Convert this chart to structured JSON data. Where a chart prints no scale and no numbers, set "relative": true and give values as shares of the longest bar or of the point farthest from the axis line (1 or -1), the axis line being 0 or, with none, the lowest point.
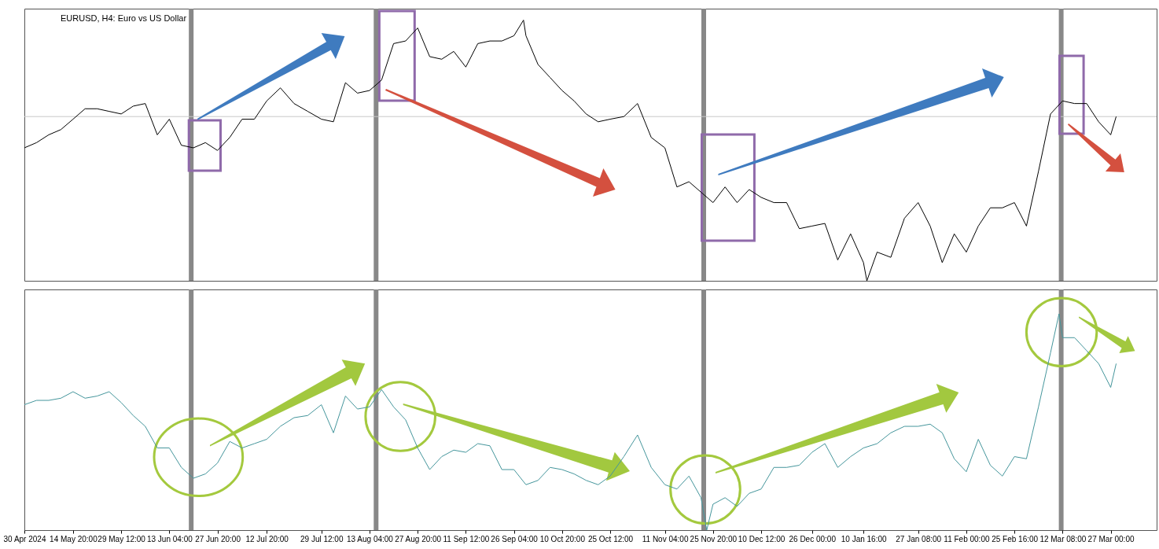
{
  "chart_data": [
    {
      "type": "line",
      "title": "EURUSD, H4: Euro vs US Dollar",
      "relative": true,
      "tick_labels": false,
      "xlim": [
        "2024-04-30T00:00",
        "2025-04-10T00:00"
      ],
      "x": [
        "2024-04-30T00:00",
        "2024-05-03T17:00",
        "2024-05-07T10:00",
        "2024-05-11T03:00",
        "2024-05-14T20:00",
        "2024-05-18T12:00",
        "2024-05-22T04:00",
        "2024-05-25T20:00",
        "2024-05-29T12:00",
        "2024-06-02T04:00",
        "2024-06-05T20:00",
        "2024-06-09T12:00",
        "2024-06-13T04:00",
        "2024-06-16T20:00",
        "2024-06-20T12:00",
        "2024-06-24T04:00",
        "2024-06-27T20:00",
        "2024-07-01T14:00",
        "2024-07-05T08:00",
        "2024-07-09T02:00",
        "2024-07-12T20:00",
        "2024-07-17T00:00",
        "2024-07-21T04:00",
        "2024-07-25T08:00",
        "2024-07-29T12:00",
        "2024-08-02T04:00",
        "2024-08-05T20:00",
        "2024-08-09T12:00",
        "2024-08-13T04:00",
        "2024-08-16T20:00",
        "2024-08-20T12:00",
        "2024-08-24T04:00",
        "2024-08-27T20:00",
        "2024-08-31T12:00",
        "2024-09-04T04:00",
        "2024-09-07T20:00",
        "2024-09-11T12:00",
        "2024-09-15T04:00",
        "2024-09-18T20:00",
        "2024-09-22T12:00",
        "2024-09-26T04:00",
        "2024-09-29T02:00",
        "2024-09-29T20:00",
        "2024-10-03T12:00",
        "2024-10-07T04:00",
        "2024-10-10T20:00",
        "2024-10-14T12:00",
        "2024-10-18T04:00",
        "2024-10-21T20:00",
        "2024-10-25T12:00",
        "2024-10-29T16:00",
        "2024-11-02T20:00",
        "2024-11-07T00:00",
        "2024-11-11T04:00",
        "2024-11-14T20:00",
        "2024-11-18T12:00",
        "2024-11-22T04:00",
        "2024-11-25T20:00",
        "2024-11-29T12:00",
        "2024-12-03T04:00",
        "2024-12-06T20:00",
        "2024-12-10T12:00",
        "2024-12-14T09:00",
        "2024-12-18T06:00",
        "2024-12-22T03:00",
        "2024-12-26T00:00",
        "2024-12-29T22:00",
        "2025-01-02T20:00",
        "2025-01-06T18:00",
        "2025-01-10T16:00",
        "2025-01-11T17:00",
        "2025-01-14T20:00",
        "2025-01-19T00:00",
        "2025-01-23T04:00",
        "2025-01-27T08:00",
        "2025-01-31T00:00",
        "2025-02-03T16:00",
        "2025-02-07T08:00",
        "2025-02-11T00:00",
        "2025-02-14T16:00",
        "2025-02-18T08:00",
        "2025-02-22T00:00",
        "2025-02-25T16:00",
        "2025-03-01T08:00",
        "2025-03-05T00:00",
        "2025-03-08T16:00",
        "2025-03-12T08:00",
        "2025-03-16T00:00",
        "2025-03-19T16:00",
        "2025-03-23T08:00",
        "2025-03-27T00:00",
        "2025-03-28T16:00"
      ],
      "series": [
        {
          "color": "#000000",
          "values": [
            0.51,
            0.53,
            0.56,
            0.58,
            0.62,
            0.66,
            0.66,
            0.65,
            0.64,
            0.67,
            0.68,
            0.56,
            0.62,
            0.52,
            0.51,
            0.53,
            0.5,
            0.55,
            0.62,
            0.62,
            0.69,
            0.74,
            0.68,
            0.65,
            0.62,
            0.61,
            0.76,
            0.72,
            0.73,
            0.77,
            0.91,
            0.92,
            0.97,
            0.86,
            0.85,
            0.88,
            0.82,
            0.91,
            0.92,
            0.92,
            0.94,
            1.0,
            0.94,
            0.83,
            0.78,
            0.73,
            0.69,
            0.64,
            0.61,
            0.62,
            0.63,
            0.68,
            0.55,
            0.51,
            0.36,
            0.38,
            0.34,
            0.3,
            0.36,
            0.3,
            0.35,
            0.32,
            0.3,
            0.3,
            0.2,
            0.21,
            0.22,
            0.08,
            0.18,
            0.07,
            0,
            0.11,
            0.09,
            0.24,
            0.3,
            0.21,
            0.07,
            0.18,
            0.11,
            0.21,
            0.28,
            0.28,
            0.3,
            0.21,
            0.42,
            0.64,
            0.69,
            0.68,
            0.68,
            0.61,
            0.56,
            0.63
          ]
        }
      ],
      "ref_lines": [
        {
          "axis": "x",
          "value": "2024-06-19T20:00",
          "color": "#888888"
        },
        {
          "axis": "x",
          "value": "2024-08-15T04:00",
          "color": "#888888"
        },
        {
          "axis": "x",
          "value": "2024-11-23T00:00",
          "color": "#888888"
        },
        {
          "axis": "x",
          "value": "2025-03-11T22:00",
          "color": "#888888"
        },
        {
          "axis": "y",
          "value": 0.63,
          "color": "#c8c8c8"
        }
      ]
    },
    {
      "type": "line",
      "relative": true,
      "tick_labels": "x",
      "xlim": [
        "2024-04-30T00:00",
        "2025-04-10T00:00"
      ],
      "xticks": [
        {
          "value": "2024-04-30T00:00",
          "label": "30 Apr 2024"
        },
        {
          "value": "2024-05-14T20:00",
          "label": "14 May 20:00"
        },
        {
          "value": "2024-05-29T12:00",
          "label": "29 May 12:00"
        },
        {
          "value": "2024-06-13T04:00",
          "label": "13 Jun 04:00"
        },
        {
          "value": "2024-06-27T20:00",
          "label": "27 Jun 20:00"
        },
        {
          "value": "2024-07-12T20:00",
          "label": "12 Jul 20:00"
        },
        {
          "value": "2024-07-29T12:00",
          "label": "29 Jul 12:00"
        },
        {
          "value": "2024-08-13T04:00",
          "label": "13 Aug 04:00"
        },
        {
          "value": "2024-08-27T20:00",
          "label": "27 Aug 20:00"
        },
        {
          "value": "2024-09-11T12:00",
          "label": "11 Sep 12:00"
        },
        {
          "value": "2024-09-26T04:00",
          "label": "26 Sep 04:00"
        },
        {
          "value": "2024-10-10T20:00",
          "label": "10 Oct 20:00"
        },
        {
          "value": "2024-10-25T12:00",
          "label": "25 Oct 12:00"
        },
        {
          "value": "2024-11-11T04:00",
          "label": "11 Nov 04:00"
        },
        {
          "value": "2024-11-25T20:00",
          "label": "25 Nov 20:00"
        },
        {
          "value": "2024-12-10T12:00",
          "label": "10 Dec 12:00"
        },
        {
          "value": "2024-12-26T00:00",
          "label": "26 Dec 00:00"
        },
        {
          "value": "2025-01-10T16:00",
          "label": "10 Jan 16:00"
        },
        {
          "value": "2025-01-27T08:00",
          "label": "27 Jan 08:00"
        },
        {
          "value": "2025-02-11T00:00",
          "label": "11 Feb 00:00"
        },
        {
          "value": "2025-02-25T16:00",
          "label": "25 Feb 16:00"
        },
        {
          "value": "2025-03-12T08:00",
          "label": "12 Mar 08:00"
        },
        {
          "value": "2025-03-27T00:00",
          "label": "27 Mar 00:00"
        }
      ],
      "x": [
        "2024-04-30T00:00",
        "2024-05-03T17:00",
        "2024-05-07T10:00",
        "2024-05-11T03:00",
        "2024-05-14T20:00",
        "2024-05-18T12:00",
        "2024-05-22T04:00",
        "2024-05-25T20:00",
        "2024-05-29T12:00",
        "2024-06-02T04:00",
        "2024-06-05T20:00",
        "2024-06-09T12:00",
        "2024-06-13T04:00",
        "2024-06-16T20:00",
        "2024-06-20T12:00",
        "2024-06-24T04:00",
        "2024-06-27T20:00",
        "2024-07-01T14:00",
        "2024-07-05T08:00",
        "2024-07-09T02:00",
        "2024-07-12T20:00",
        "2024-07-17T00:00",
        "2024-07-21T04:00",
        "2024-07-25T08:00",
        "2024-07-29T12:00",
        "2024-08-02T04:00",
        "2024-08-05T20:00",
        "2024-08-09T12:00",
        "2024-08-13T04:00",
        "2024-08-16T20:00",
        "2024-08-20T12:00",
        "2024-08-24T04:00",
        "2024-08-27T20:00",
        "2024-08-31T12:00",
        "2024-09-04T04:00",
        "2024-09-07T20:00",
        "2024-09-11T12:00",
        "2024-09-15T04:00",
        "2024-09-18T20:00",
        "2024-09-22T12:00",
        "2024-09-26T04:00",
        "2024-09-29T20:00",
        "2024-10-03T12:00",
        "2024-10-07T04:00",
        "2024-10-10T20:00",
        "2024-10-14T12:00",
        "2024-10-18T04:00",
        "2024-10-21T20:00",
        "2024-10-25T12:00",
        "2024-10-29T16:00",
        "2024-11-02T20:00",
        "2024-11-07T00:00",
        "2024-11-11T04:00",
        "2024-11-14T20:00",
        "2024-11-18T12:00",
        "2024-11-22T04:00",
        "2024-11-23T22:00",
        "2024-11-25T20:00",
        "2024-11-29T12:00",
        "2024-12-03T04:00",
        "2024-12-06T20:00",
        "2024-12-10T12:00",
        "2024-12-14T09:00",
        "2024-12-18T06:00",
        "2024-12-22T03:00",
        "2024-12-26T00:00",
        "2024-12-29T22:00",
        "2025-01-02T20:00",
        "2025-01-06T18:00",
        "2025-01-10T16:00",
        "2025-01-14T20:00",
        "2025-01-19T00:00",
        "2025-01-23T04:00",
        "2025-01-27T08:00",
        "2025-01-31T00:00",
        "2025-02-03T16:00",
        "2025-02-07T08:00",
        "2025-02-11T00:00",
        "2025-02-14T16:00",
        "2025-02-18T08:00",
        "2025-02-22T00:00",
        "2025-02-25T16:00",
        "2025-03-01T08:00",
        "2025-03-05T00:00",
        "2025-03-08T16:00",
        "2025-03-11T06:00",
        "2025-03-12T08:00",
        "2025-03-16T00:00",
        "2025-03-19T16:00",
        "2025-03-23T08:00",
        "2025-03-27T00:00",
        "2025-03-28T16:00"
      ],
      "series": [
        {
          "color": "#45969c",
          "values": [
            0.58,
            0.6,
            0.6,
            0.61,
            0.64,
            0.61,
            0.62,
            0.64,
            0.59,
            0.53,
            0.48,
            0.38,
            0.38,
            0.29,
            0.24,
            0.26,
            0.31,
            0.41,
            0.38,
            0.4,
            0.42,
            0.48,
            0.52,
            0.53,
            0.58,
            0.45,
            0.62,
            0.56,
            0.57,
            0.65,
            0.57,
            0.51,
            0.38,
            0.28,
            0.34,
            0.37,
            0.36,
            0.4,
            0.39,
            0.28,
            0.28,
            0.21,
            0.23,
            0.29,
            0.28,
            0.26,
            0.23,
            0.21,
            0.25,
            0.34,
            0.44,
            0.29,
            0.21,
            0.19,
            0.25,
            0.15,
            0,
            0.12,
            0.15,
            0.11,
            0.17,
            0.19,
            0.29,
            0.29,
            0.3,
            0.36,
            0.4,
            0.29,
            0.34,
            0.38,
            0.4,
            0.45,
            0.48,
            0.48,
            0.49,
            0.45,
            0.33,
            0.27,
            0.42,
            0.3,
            0.25,
            0.34,
            0.33,
            0.57,
            0.82,
            1.0,
            0.89,
            0.89,
            0.83,
            0.77,
            0.66,
            0.77
          ]
        }
      ],
      "ref_lines": [
        {
          "axis": "x",
          "value": "2024-06-19T20:00",
          "color": "#888888"
        },
        {
          "axis": "x",
          "value": "2024-08-15T04:00",
          "color": "#888888"
        },
        {
          "axis": "x",
          "value": "2024-11-23T00:00",
          "color": "#888888"
        },
        {
          "axis": "x",
          "value": "2025-03-11T22:00",
          "color": "#888888"
        }
      ]
    }
  ]
}
